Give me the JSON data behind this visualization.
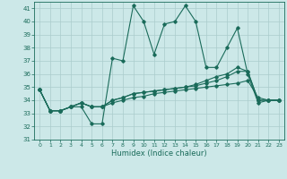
{
  "title": "",
  "xlabel": "Humidex (Indice chaleur)",
  "background_color": "#cce8e8",
  "grid_color": "#aacccc",
  "line_color": "#1a6b5a",
  "xlim": [
    -0.5,
    23.5
  ],
  "ylim": [
    31,
    41.5
  ],
  "yticks": [
    31,
    32,
    33,
    34,
    35,
    36,
    37,
    38,
    39,
    40,
    41
  ],
  "xticks": [
    0,
    1,
    2,
    3,
    4,
    5,
    6,
    7,
    8,
    9,
    10,
    11,
    12,
    13,
    14,
    15,
    16,
    17,
    18,
    19,
    20,
    21,
    22,
    23
  ],
  "series": [
    [
      34.8,
      33.2,
      33.2,
      33.5,
      33.5,
      32.2,
      32.2,
      37.2,
      37.0,
      41.2,
      40.0,
      37.5,
      39.8,
      40.0,
      41.2,
      40.0,
      36.5,
      36.5,
      38.0,
      39.5,
      36.0,
      33.8,
      34.0,
      34.0
    ],
    [
      34.8,
      33.2,
      33.2,
      33.5,
      33.8,
      33.5,
      33.5,
      33.8,
      34.0,
      34.2,
      34.3,
      34.5,
      34.6,
      34.7,
      34.8,
      34.9,
      35.0,
      35.1,
      35.2,
      35.3,
      35.5,
      34.2,
      34.0,
      34.0
    ],
    [
      34.8,
      33.2,
      33.2,
      33.5,
      33.8,
      33.5,
      33.5,
      34.0,
      34.2,
      34.5,
      34.6,
      34.7,
      34.8,
      34.9,
      35.0,
      35.1,
      35.3,
      35.5,
      35.8,
      36.2,
      36.2,
      34.0,
      34.0,
      34.0
    ],
    [
      34.8,
      33.2,
      33.2,
      33.5,
      33.8,
      33.5,
      33.5,
      34.0,
      34.2,
      34.5,
      34.6,
      34.7,
      34.8,
      34.9,
      35.0,
      35.2,
      35.5,
      35.8,
      36.0,
      36.5,
      36.2,
      34.0,
      34.0,
      34.0
    ]
  ]
}
